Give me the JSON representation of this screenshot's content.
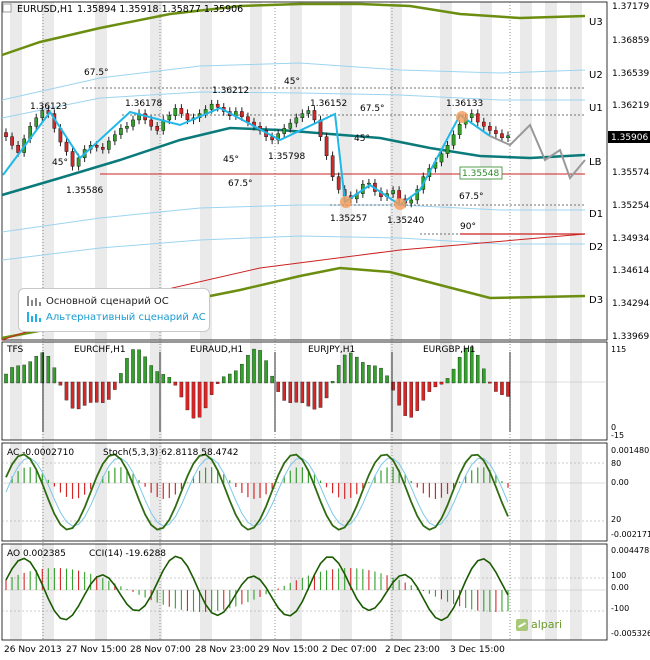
{
  "header": {
    "symbol": "EURUSD,H1",
    "ohlc": "1.35894 1.35918 1.35877 1.35906"
  },
  "colors": {
    "bull": "#33a02c",
    "bear": "#d62728",
    "wick": "#222222",
    "teal": "#0b7a7a",
    "olive": "#6b8e10",
    "cyan": "#20b8e8",
    "lightblue": "#9cd4f0",
    "red": "#cc2222",
    "session": "#d9d9d9",
    "highlight_orange": "#f59a58",
    "grid": "#b0b0b0"
  },
  "price_axis": {
    "ticks": [
      "1.37179",
      "1.36859",
      "1.36539",
      "1.36219",
      "1.35906",
      "1.35574",
      "1.35254",
      "1.34934",
      "1.34614",
      "1.34294",
      "1.33969"
    ],
    "current": "1.35906",
    "level_labels": [
      "U3",
      "U2",
      "U1",
      "LB",
      "D1",
      "D2",
      "D3"
    ]
  },
  "time_axis": [
    "26 Nov 2013",
    "27 Nov 15:00",
    "28 Nov 07:00",
    "28 Nov 23:00",
    "29 Nov 15:00",
    "2 Dec 07:00",
    "2 Dec 23:00",
    "3 Dec 15:00"
  ],
  "price_annotations": {
    "swing_labels": [
      "1.36123",
      "1.36178",
      "1.36212",
      "1.36152",
      "1.36133",
      "1.35586",
      "1.35798",
      "1.35257",
      "1.35240"
    ],
    "boxed_label": "1.35548",
    "angle_labels": [
      "67.5°",
      "45°",
      "45°",
      "45°",
      "45°",
      "67.5°",
      "67.5°",
      "67.5°",
      "90°"
    ]
  },
  "legend": {
    "main": "Основной сценарий OC",
    "alt": "Альтернативный сценарий AC"
  },
  "tfs_panel": {
    "title": "TFS",
    "pairs": [
      "EURCHF,H1",
      "EURAUD,H1",
      "EURJPY,H1",
      "EURGBP,H1"
    ],
    "axis": [
      "115",
      "0",
      "-15"
    ]
  },
  "ac_panel": {
    "label": "AC -0.0002710",
    "stoch_label": "Stoch(5,3,3) 62.8118 58.4742",
    "axis": [
      "0.001480",
      "80",
      "0.00",
      "20",
      "-0.002171"
    ]
  },
  "ao_panel": {
    "label": "AO 0.002385",
    "cci_label": "CCI(14) -19.6288",
    "axis": [
      "0.004478",
      "100",
      "0.00",
      "-100",
      "-0.005326"
    ]
  },
  "logo": "alpari",
  "chart_data": {
    "type": "candlestick",
    "symbol": "EURUSD",
    "timeframe": "H1",
    "ylim": [
      1.3397,
      1.3718
    ],
    "price_ticks": [
      1.37179,
      1.36859,
      1.36539,
      1.36219,
      1.35906,
      1.35574,
      1.35254,
      1.34934,
      1.34614,
      1.34294,
      1.33969
    ],
    "x_tick_labels": [
      "26 Nov 2013",
      "27 Nov 15:00",
      "28 Nov 07:00",
      "28 Nov 23:00",
      "29 Nov 15:00",
      "2 Dec 07:00",
      "2 Dec 23:00",
      "3 Dec 15:00"
    ],
    "closes": [
      1.359,
      1.3582,
      1.3575,
      1.3588,
      1.36,
      1.3608,
      1.3615,
      1.3612,
      1.3598,
      1.3585,
      1.3576,
      1.3562,
      1.357,
      1.3578,
      1.3582,
      1.358,
      1.3578,
      1.3586,
      1.3592,
      1.3598,
      1.36,
      1.3606,
      1.3612,
      1.3606,
      1.36,
      1.3596,
      1.3606,
      1.361,
      1.3617,
      1.3612,
      1.3606,
      1.3608,
      1.3612,
      1.3616,
      1.3621,
      1.3618,
      1.3614,
      1.361,
      1.3614,
      1.3609,
      1.3604,
      1.36,
      1.3596,
      1.359,
      1.3587,
      1.3593,
      1.3598,
      1.3603,
      1.3608,
      1.3612,
      1.3615,
      1.3606,
      1.359,
      1.3572,
      1.3552,
      1.354,
      1.3534,
      1.3531,
      1.3536,
      1.3545,
      1.3546,
      1.3538,
      1.3533,
      1.3536,
      1.3539,
      1.3531,
      1.3527,
      1.353,
      1.354,
      1.3552,
      1.356,
      1.3566,
      1.3574,
      1.3582,
      1.3592,
      1.3602,
      1.3608,
      1.3612,
      1.3604,
      1.36,
      1.3596,
      1.3593,
      1.3589,
      1.3591
    ],
    "swing_points": [
      {
        "label": "1.36123",
        "value": 1.36123
      },
      {
        "label": "1.36178",
        "value": 1.36178
      },
      {
        "label": "1.36212",
        "value": 1.36212
      },
      {
        "label": "1.36152",
        "value": 1.36152
      },
      {
        "label": "1.36133",
        "value": 1.36133
      },
      {
        "label": "1.35586",
        "value": 1.35586
      },
      {
        "label": "1.35798",
        "value": 1.35798
      },
      {
        "label": "1.35257",
        "value": 1.35257
      },
      {
        "label": "1.35240",
        "value": 1.3524
      }
    ],
    "scenarios": [
      {
        "name": "Основной сценарий OC",
        "values": [
          1.35906,
          1.358,
          1.3596,
          1.357,
          1.3576,
          1.3553,
          1.3574
        ]
      },
      {
        "name": "Альтернативный сценарий AC",
        "values": [
          1.35606,
          1.36123,
          1.3584,
          1.35586,
          1.359,
          1.35798,
          1.36152,
          1.35257,
          1.354,
          1.3524,
          1.356,
          1.36133,
          1.35906
        ]
      }
    ],
    "subcharts": [
      {
        "name": "TFS",
        "type": "bar",
        "ylim": [
          -15,
          115
        ],
        "pairs": [
          "EURCHF,H1",
          "EURAUD,H1",
          "EURJPY,H1",
          "EURGBP,H1"
        ]
      },
      {
        "name": "AC",
        "type": "histogram",
        "value": -0.000271,
        "ylim": [
          -0.002171,
          0.00148
        ],
        "overlay": {
          "name": "Stoch(5,3,3)",
          "values": [
            62.8118,
            58.4742
          ],
          "levels": [
            80,
            20
          ]
        }
      },
      {
        "name": "AO",
        "type": "histogram",
        "value": 0.002385,
        "ylim": [
          -0.005326,
          0.004478
        ],
        "overlay": {
          "name": "CCI(14)",
          "value": -19.6288,
          "levels": [
            100,
            -100
          ]
        }
      }
    ]
  }
}
